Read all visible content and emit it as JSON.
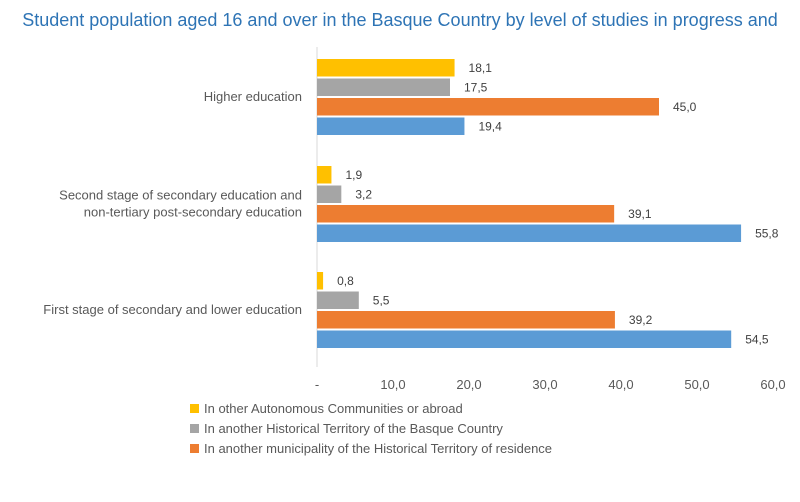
{
  "chart_data": {
    "type": "bar",
    "orientation": "horizontal",
    "title": "Student population aged 16 and over in the Basque Country by level of studies in progress and",
    "categories": [
      [
        "Higher education"
      ],
      [
        "Second stage of secondary education and",
        "non-tertiary post-secondary education"
      ],
      [
        "First stage of secondary and lower education"
      ]
    ],
    "series": [
      {
        "name": "In other Autonomous Communities or abroad",
        "color": "#ffc000",
        "values": [
          18.1,
          1.9,
          0.8
        ],
        "labels": [
          "18,1",
          "1,9",
          "0,8"
        ]
      },
      {
        "name": "In another Historical Territory of the Basque Country",
        "color": "#a5a5a5",
        "values": [
          17.5,
          3.2,
          5.5
        ],
        "labels": [
          "17,5",
          "3,2",
          "5,5"
        ]
      },
      {
        "name": "In another municipality of the Historical Territory of residence",
        "color": "#ed7d31",
        "values": [
          45.0,
          39.1,
          39.2
        ],
        "labels": [
          "45,0",
          "39,1",
          "39,2"
        ]
      },
      {
        "color": "#5b9bd5",
        "values": [
          19.4,
          55.8,
          54.5
        ],
        "labels": [
          "19,4",
          "55,8",
          "54,5"
        ]
      }
    ],
    "xlim": [
      0,
      60
    ],
    "xticks": [
      "-",
      "10,0",
      "20,0",
      "30,0",
      "40,0",
      "50,0",
      "60,0"
    ],
    "legend_position": "bottom",
    "grid": false
  }
}
